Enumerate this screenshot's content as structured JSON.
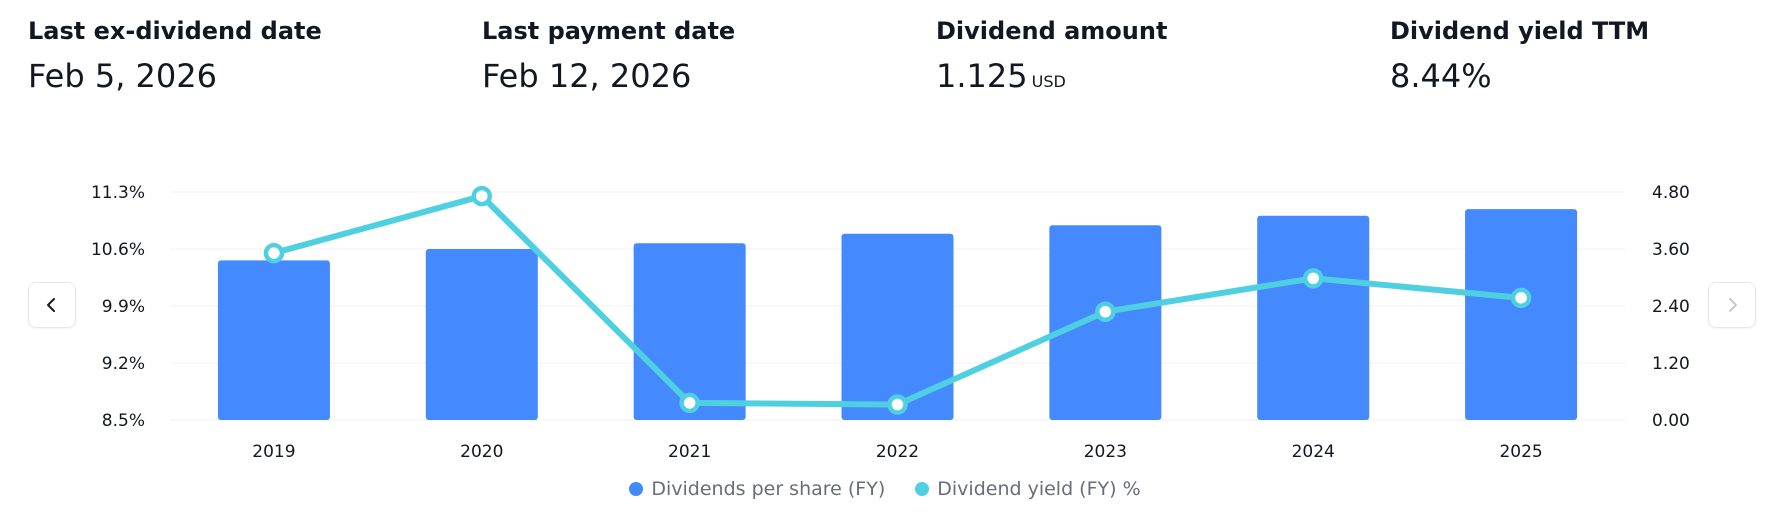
{
  "stats": [
    {
      "label": "Last ex-dividend date",
      "value": "Feb 5, 2026",
      "unit": ""
    },
    {
      "label": "Last payment date",
      "value": "Feb 12, 2026",
      "unit": ""
    },
    {
      "label": "Dividend amount",
      "value": "1.125",
      "unit": "USD"
    },
    {
      "label": "Dividend yield TTM",
      "value": "8.44%",
      "unit": ""
    }
  ],
  "colors": {
    "bar": "#4589ff",
    "line": "#4fd0e0",
    "grid": "#f0f1f3"
  },
  "icons": {
    "prev": "chevron-left-icon",
    "next": "chevron-right-icon"
  },
  "chart_data": {
    "type": "bar",
    "categories": [
      "2019",
      "2020",
      "2021",
      "2022",
      "2023",
      "2024",
      "2025"
    ],
    "series": [
      {
        "name": "Dividends per share (FY)",
        "type": "bar",
        "axis": "right",
        "values": [
          3.36,
          3.6,
          3.72,
          3.92,
          4.1,
          4.3,
          4.44
        ]
      },
      {
        "name": "Dividend yield (FY) %",
        "type": "line",
        "axis": "left",
        "values": [
          10.55,
          11.25,
          8.71,
          8.69,
          9.83,
          10.24,
          10.0
        ]
      }
    ],
    "left_axis": {
      "ticks": [
        "11.3%",
        "10.6%",
        "9.9%",
        "9.2%",
        "8.5%"
      ],
      "ylim": [
        8.5,
        11.3
      ]
    },
    "right_axis": {
      "ticks": [
        "4.80",
        "3.60",
        "2.40",
        "1.20",
        "0.00"
      ],
      "ylim": [
        0,
        4.8
      ]
    },
    "grid": true,
    "legend": "bottom-center"
  }
}
